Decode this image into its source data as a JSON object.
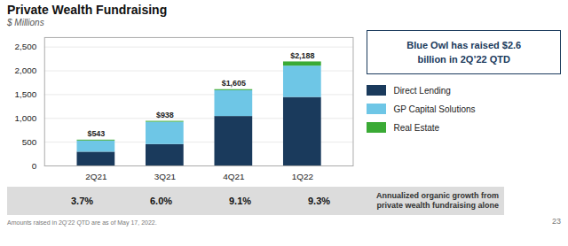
{
  "chart_data": {
    "type": "bar",
    "stacked": true,
    "title": "Private Wealth Fundraising",
    "subtitle": "$ Millions",
    "categories": [
      "2Q21",
      "3Q21",
      "4Q21",
      "1Q22"
    ],
    "series": [
      {
        "name": "Direct Lending",
        "color": "#1a3a5c",
        "values": [
          290,
          450,
          1040,
          1440
        ]
      },
      {
        "name": "GP Capital Solutions",
        "color": "#6ec6e6",
        "values": [
          235,
          470,
          545,
          660
        ]
      },
      {
        "name": "Real Estate",
        "color": "#3aaa35",
        "values": [
          18,
          18,
          20,
          88
        ]
      }
    ],
    "totals": {
      "values": [
        543,
        938,
        1605,
        2188
      ],
      "value_labels": [
        "$543",
        "$938",
        "$1,605",
        "$2,188"
      ]
    },
    "growth_rates": {
      "label": "Annualized organic growth from\nprivate wealth fundraising alone",
      "values": [
        3.7,
        6.0,
        9.1,
        9.3
      ],
      "value_labels": [
        "3.7%",
        "6.0%",
        "9.1%",
        "9.3%"
      ]
    },
    "ylim": [
      0,
      2700
    ],
    "yticks": [
      0,
      500,
      {
        "value": 1000,
        "label": "1,000"
      },
      {
        "value": 1500,
        "label": "1,500"
      },
      {
        "value": 2000,
        "label": "2,000"
      },
      {
        "value": 2500,
        "label": "2,500"
      }
    ],
    "grid": true,
    "legend": "right",
    "callout": "Blue Owl has raised $2.6\nbillion in 2Q’22 QTD",
    "footnote": "Amounts raised in 2Q'22 QTD are as of May 17, 2022.",
    "page_number": "23"
  }
}
